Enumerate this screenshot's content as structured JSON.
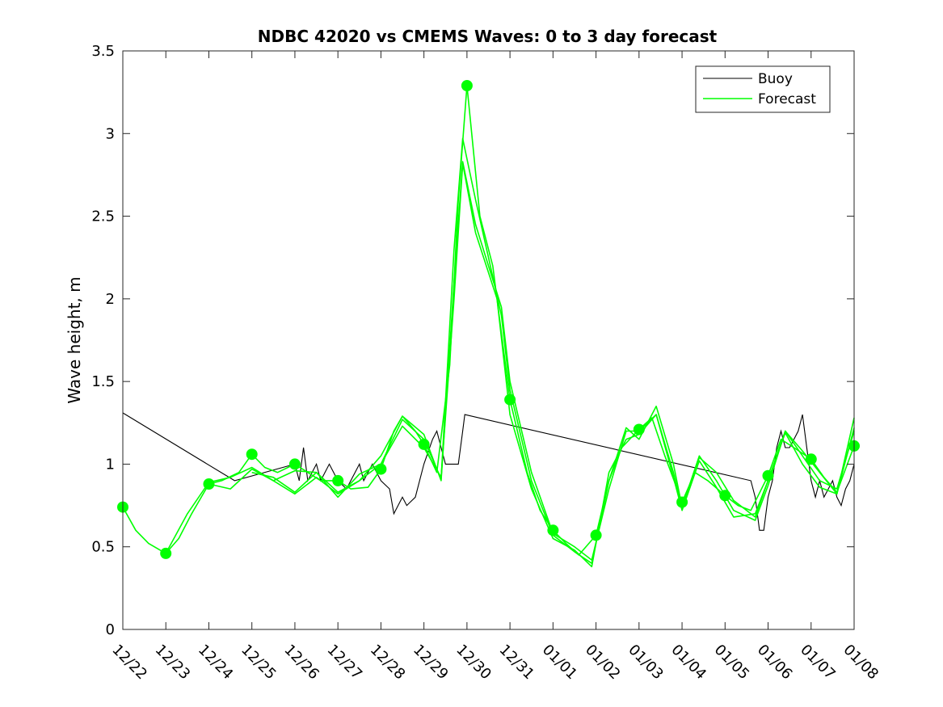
{
  "chart_data": {
    "type": "line",
    "title": "NDBC 42020 vs CMEMS Waves: 0 to 3 day forecast",
    "xlabel": "",
    "ylabel": "Wave height, m",
    "xlim": [
      "12/22",
      "01/08"
    ],
    "ylim": [
      0,
      3.5
    ],
    "x_tick_labels": [
      "12/22",
      "12/23",
      "12/24",
      "12/25",
      "12/26",
      "12/27",
      "12/28",
      "12/29",
      "12/30",
      "12/31",
      "01/01",
      "01/02",
      "01/03",
      "01/04",
      "01/05",
      "01/06",
      "01/07",
      "01/08"
    ],
    "y_ticks": [
      0,
      0.5,
      1,
      1.5,
      2,
      2.5,
      3,
      3.5
    ],
    "y_tick_labels": [
      "0",
      "0.5",
      "1",
      "1.5",
      "2",
      "2.5",
      "3",
      "3.5"
    ],
    "grid": false,
    "legend_position": "top-right",
    "legend": [
      "Buoy",
      "Forecast"
    ],
    "colors": {
      "buoy": "#000000",
      "forecast": "#00ff00"
    },
    "series": [
      {
        "name": "Buoy",
        "points": [
          [
            0,
            1.31
          ],
          [
            2.6,
            0.9
          ],
          [
            4.0,
            1.0
          ],
          [
            4.1,
            0.9
          ],
          [
            4.2,
            1.1
          ],
          [
            4.3,
            0.9
          ],
          [
            4.5,
            1.0
          ],
          [
            4.6,
            0.9
          ],
          [
            4.8,
            1.0
          ],
          [
            5.0,
            0.9
          ],
          [
            5.2,
            0.85
          ],
          [
            5.3,
            0.9
          ],
          [
            5.5,
            1.0
          ],
          [
            5.6,
            0.9
          ],
          [
            5.8,
            1.0
          ],
          [
            6.0,
            0.9
          ],
          [
            6.2,
            0.85
          ],
          [
            6.3,
            0.7
          ],
          [
            6.5,
            0.8
          ],
          [
            6.6,
            0.75
          ],
          [
            6.8,
            0.8
          ],
          [
            7.0,
            1.0
          ],
          [
            7.2,
            1.15
          ],
          [
            7.3,
            1.2
          ],
          [
            7.4,
            1.1
          ],
          [
            7.5,
            1.0
          ],
          [
            7.8,
            1.0
          ],
          [
            7.9,
            1.2
          ],
          [
            7.95,
            1.3
          ],
          [
            14.6,
            0.9
          ],
          [
            14.7,
            0.8
          ],
          [
            14.8,
            0.6
          ],
          [
            14.9,
            0.6
          ],
          [
            15.0,
            0.8
          ],
          [
            15.1,
            0.9
          ],
          [
            15.2,
            1.1
          ],
          [
            15.3,
            1.2
          ],
          [
            15.4,
            1.1
          ],
          [
            15.5,
            1.1
          ],
          [
            15.6,
            1.15
          ],
          [
            15.7,
            1.2
          ],
          [
            15.8,
            1.3
          ],
          [
            15.9,
            1.1
          ],
          [
            16.0,
            0.9
          ],
          [
            16.1,
            0.8
          ],
          [
            16.2,
            0.9
          ],
          [
            16.3,
            0.8
          ],
          [
            16.4,
            0.85
          ],
          [
            16.5,
            0.9
          ],
          [
            16.6,
            0.8
          ],
          [
            16.7,
            0.75
          ],
          [
            16.8,
            0.85
          ],
          [
            16.9,
            0.9
          ],
          [
            17.0,
            1.0
          ]
        ]
      },
      {
        "name": "Forecast",
        "segments": [
          [
            [
              0,
              0.74
            ],
            [
              0.3,
              0.6
            ],
            [
              0.6,
              0.52
            ],
            [
              1.0,
              0.46
            ],
            [
              1.3,
              0.55
            ],
            [
              1.6,
              0.7
            ],
            [
              2.0,
              0.88
            ],
            [
              2.3,
              0.9
            ],
            [
              2.7,
              0.95
            ],
            [
              3.0,
              1.06
            ],
            [
              3.3,
              0.98
            ],
            [
              3.6,
              0.95
            ],
            [
              4.0,
              1.0
            ],
            [
              4.3,
              0.95
            ],
            [
              4.6,
              0.9
            ],
            [
              5.0,
              0.9
            ],
            [
              5.3,
              0.85
            ],
            [
              5.7,
              0.86
            ],
            [
              6.0,
              0.97
            ],
            [
              6.3,
              1.2
            ],
            [
              6.5,
              1.29
            ],
            [
              6.8,
              1.2
            ],
            [
              7.0,
              1.12
            ],
            [
              7.3,
              0.95
            ],
            [
              7.6,
              1.6
            ],
            [
              7.8,
              2.6
            ],
            [
              8.0,
              3.29
            ],
            [
              8.3,
              2.5
            ],
            [
              8.6,
              2.2
            ],
            [
              9.0,
              1.39
            ],
            [
              9.4,
              0.95
            ],
            [
              9.7,
              0.72
            ],
            [
              10.0,
              0.6
            ],
            [
              10.3,
              0.52
            ],
            [
              10.6,
              0.45
            ],
            [
              11.0,
              0.57
            ],
            [
              11.3,
              0.9
            ],
            [
              11.6,
              1.1
            ],
            [
              12.0,
              1.21
            ],
            [
              12.3,
              1.28
            ],
            [
              12.6,
              1.05
            ],
            [
              13.0,
              0.77
            ],
            [
              13.3,
              0.95
            ],
            [
              13.6,
              0.9
            ],
            [
              14.0,
              0.81
            ],
            [
              14.3,
              0.75
            ],
            [
              14.6,
              0.72
            ],
            [
              15.0,
              0.93
            ],
            [
              15.3,
              1.15
            ],
            [
              15.6,
              1.1
            ],
            [
              16.0,
              1.03
            ],
            [
              16.3,
              0.92
            ],
            [
              16.6,
              0.83
            ],
            [
              17.0,
              1.11
            ]
          ],
          [
            [
              1.0,
              0.46
            ],
            [
              1.5,
              0.7
            ],
            [
              2.0,
              0.89
            ],
            [
              2.5,
              0.92
            ],
            [
              3.0,
              0.98
            ],
            [
              3.5,
              0.9
            ],
            [
              4.0,
              0.82
            ],
            [
              4.5,
              0.92
            ],
            [
              5.0,
              0.82
            ],
            [
              5.5,
              0.9
            ],
            [
              6.0,
              1.0
            ],
            [
              6.5,
              1.23
            ],
            [
              7.0,
              1.1
            ],
            [
              7.4,
              0.92
            ],
            [
              7.7,
              2.0
            ],
            [
              7.9,
              2.82
            ],
            [
              8.2,
              2.4
            ],
            [
              8.7,
              2.0
            ],
            [
              9.0,
              1.3
            ],
            [
              9.5,
              0.85
            ],
            [
              10.0,
              0.55
            ],
            [
              10.5,
              0.48
            ],
            [
              10.9,
              0.38
            ],
            [
              11.3,
              0.95
            ],
            [
              11.7,
              1.15
            ],
            [
              12.0,
              1.18
            ],
            [
              12.4,
              1.3
            ],
            [
              12.8,
              0.92
            ],
            [
              13.0,
              0.72
            ],
            [
              13.4,
              1.02
            ],
            [
              13.8,
              0.86
            ],
            [
              14.2,
              0.68
            ],
            [
              14.7,
              0.7
            ],
            [
              15.0,
              0.9
            ],
            [
              15.4,
              1.19
            ],
            [
              15.8,
              1.0
            ],
            [
              16.2,
              0.86
            ],
            [
              16.6,
              0.82
            ],
            [
              17.0,
              1.28
            ]
          ],
          [
            [
              2.0,
              0.88
            ],
            [
              2.5,
              0.85
            ],
            [
              3.0,
              0.97
            ],
            [
              3.5,
              0.9
            ],
            [
              4.0,
              0.96
            ],
            [
              4.5,
              0.95
            ],
            [
              5.0,
              0.8
            ],
            [
              5.5,
              0.94
            ],
            [
              6.0,
              1.0
            ],
            [
              6.5,
              1.27
            ],
            [
              7.0,
              1.15
            ],
            [
              7.4,
              0.91
            ],
            [
              7.7,
              2.3
            ],
            [
              7.9,
              2.97
            ],
            [
              8.2,
              2.6
            ],
            [
              8.8,
              1.9
            ],
            [
              9.0,
              1.45
            ],
            [
              9.5,
              0.9
            ],
            [
              10.0,
              0.57
            ],
            [
              10.5,
              0.47
            ],
            [
              10.9,
              0.4
            ],
            [
              11.3,
              0.9
            ],
            [
              11.7,
              1.22
            ],
            [
              12.0,
              1.15
            ],
            [
              12.4,
              1.35
            ],
            [
              12.8,
              1.0
            ],
            [
              13.0,
              0.74
            ],
            [
              13.4,
              1.05
            ],
            [
              13.8,
              0.9
            ],
            [
              14.2,
              0.72
            ],
            [
              14.7,
              0.66
            ],
            [
              15.0,
              0.87
            ],
            [
              15.4,
              1.2
            ],
            [
              15.8,
              1.05
            ],
            [
              16.2,
              0.9
            ],
            [
              16.6,
              0.85
            ],
            [
              17.0,
              1.2
            ]
          ],
          [
            [
              3.0,
              0.95
            ],
            [
              3.5,
              0.92
            ],
            [
              4.0,
              0.83
            ],
            [
              4.5,
              0.95
            ],
            [
              5.0,
              0.83
            ],
            [
              5.5,
              0.9
            ],
            [
              6.0,
              1.05
            ],
            [
              6.5,
              1.29
            ],
            [
              7.0,
              1.18
            ],
            [
              7.4,
              0.9
            ],
            [
              7.7,
              2.1
            ],
            [
              7.9,
              2.83
            ],
            [
              8.2,
              2.45
            ],
            [
              8.8,
              1.95
            ],
            [
              9.0,
              1.5
            ],
            [
              9.5,
              0.95
            ],
            [
              10.0,
              0.58
            ],
            [
              10.5,
              0.5
            ],
            [
              10.9,
              0.42
            ],
            [
              11.3,
              0.85
            ],
            [
              11.7,
              1.2
            ],
            [
              12.0,
              1.2
            ],
            [
              12.4,
              1.3
            ],
            [
              12.8,
              0.95
            ],
            [
              13.0,
              0.73
            ],
            [
              13.4,
              1.04
            ],
            [
              13.8,
              0.95
            ],
            [
              14.2,
              0.78
            ],
            [
              14.7,
              0.68
            ],
            [
              15.0,
              0.9
            ],
            [
              15.4,
              1.2
            ],
            [
              15.8,
              1.08
            ],
            [
              16.2,
              0.95
            ],
            [
              16.6,
              0.82
            ],
            [
              17.0,
              1.22
            ]
          ]
        ],
        "markers": [
          [
            0,
            0.74
          ],
          [
            1,
            0.46
          ],
          [
            2,
            0.88
          ],
          [
            3,
            1.06
          ],
          [
            4,
            1.0
          ],
          [
            5,
            0.9
          ],
          [
            6,
            0.97
          ],
          [
            7,
            1.12
          ],
          [
            8,
            3.29
          ],
          [
            9,
            1.39
          ],
          [
            10,
            0.6
          ],
          [
            11,
            0.57
          ],
          [
            12,
            1.21
          ],
          [
            13,
            0.77
          ],
          [
            14,
            0.81
          ],
          [
            15,
            0.93
          ],
          [
            16,
            1.03
          ],
          [
            17,
            1.11
          ]
        ]
      }
    ]
  }
}
